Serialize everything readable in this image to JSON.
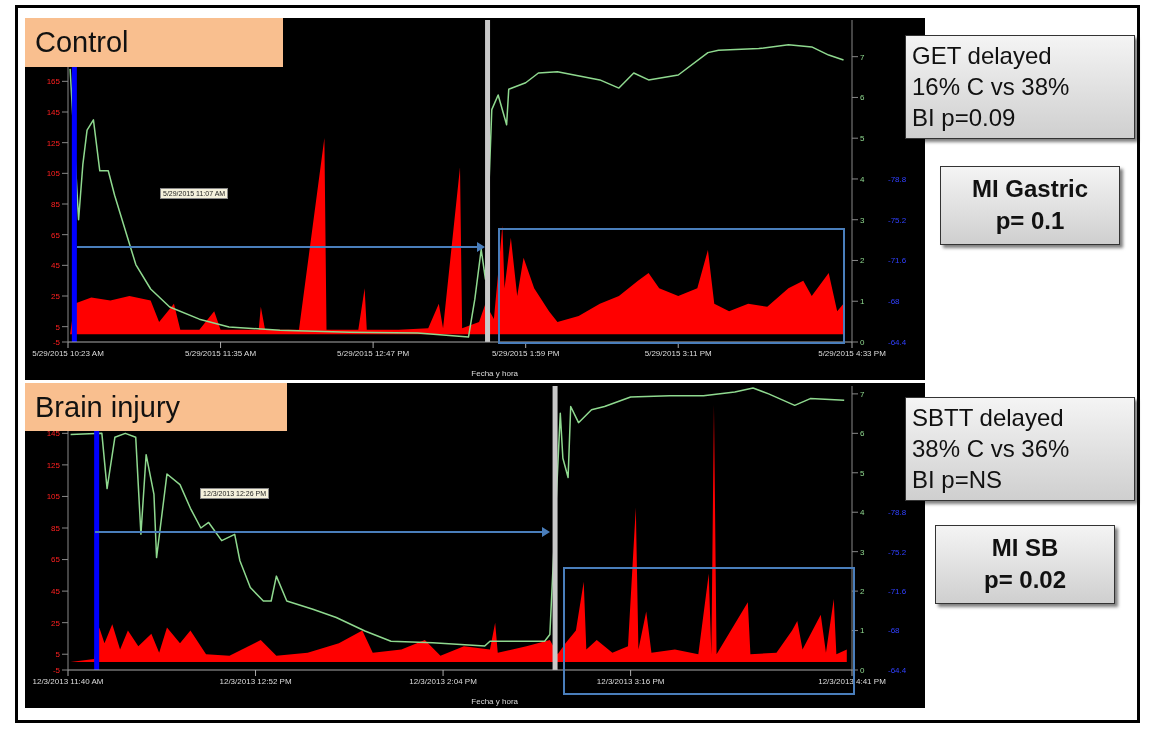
{
  "chart_data": [
    {
      "type": "line",
      "title": "Control",
      "xlabel": "Fecha y hora",
      "xlim": [
        "2015-05-29T10:23",
        "2015-05-29T16:33"
      ],
      "xticks": [
        {
          "value": "2015-05-29T10:23",
          "label": "5/29/2015 10:23 AM"
        },
        {
          "value": "2015-05-29T11:35",
          "label": "5/29/2015 11:35 AM"
        },
        {
          "value": "2015-05-29T12:47",
          "label": "5/29/2015 12:47 PM"
        },
        {
          "value": "2015-05-29T13:59",
          "label": "5/29/2015 1:59 PM"
        },
        {
          "value": "2015-05-29T15:11",
          "label": "5/29/2015 3:11 PM"
        },
        {
          "value": "2015-05-29T16:33",
          "label": "5/29/2015 4:33 PM"
        }
      ],
      "ylim": [
        -5,
        205
      ],
      "yticks": [
        -5,
        5,
        25,
        45,
        65,
        85,
        105,
        125,
        145,
        165
      ],
      "y2lim": [
        0,
        7.9
      ],
      "y2ticks": [
        0,
        1,
        2,
        3,
        4,
        5,
        6,
        7
      ],
      "y3lim": [
        -64.4,
        -92.84
      ],
      "y3ticks": [
        -64.4,
        -68,
        -71.6,
        -75.2,
        -78.8
      ],
      "series": [
        {
          "type": "area",
          "color": "#ff0000",
          "x": [
            "2015-05-29T10:24",
            "2015-05-29T10:26",
            "2015-05-29T10:34",
            "2015-05-29T10:43",
            "2015-05-29T10:52",
            "2015-05-29T11:02",
            "2015-05-29T11:06",
            "2015-05-29T11:13",
            "2015-05-29T11:16",
            "2015-05-29T11:19",
            "2015-05-29T11:25",
            "2015-05-29T11:32",
            "2015-05-29T11:35",
            "2015-05-29T11:53",
            "2015-05-29T11:54",
            "2015-05-29T11:56",
            "2015-05-29T12:12",
            "2015-05-29T12:24",
            "2015-05-29T12:25",
            "2015-05-29T12:40",
            "2015-05-29T12:43",
            "2015-05-29T12:44",
            "2015-05-29T12:59",
            "2015-05-29T13:13",
            "2015-05-29T13:18",
            "2015-05-29T13:20",
            "2015-05-29T13:28",
            "2015-05-29T13:29",
            "2015-05-29T13:37",
            "2015-05-29T13:40",
            "2015-05-29T13:44",
            "2015-05-29T13:46",
            "2015-05-29T13:48",
            "2015-05-29T13:49",
            "2015-05-29T13:52",
            "2015-05-29T13:55",
            "2015-05-29T13:58",
            "2015-05-29T14:03",
            "2015-05-29T14:10",
            "2015-05-29T14:14",
            "2015-05-29T14:24",
            "2015-05-29T14:34",
            "2015-05-29T14:43",
            "2015-05-29T14:52",
            "2015-05-29T14:57",
            "2015-05-29T15:02",
            "2015-05-29T15:11",
            "2015-05-29T15:20",
            "2015-05-29T15:25",
            "2015-05-29T15:28",
            "2015-05-29T15:35",
            "2015-05-29T15:44",
            "2015-05-29T15:53",
            "2015-05-29T16:03",
            "2015-05-29T16:10",
            "2015-05-29T16:14",
            "2015-05-29T16:22",
            "2015-05-29T16:26",
            "2015-05-29T16:29"
          ],
          "values": [
            0,
            20,
            24,
            22,
            25,
            22,
            8,
            20,
            3,
            3,
            3,
            15,
            3,
            3,
            18,
            3,
            3,
            128,
            3,
            3,
            30,
            3,
            3,
            4,
            20,
            4,
            109,
            4,
            8,
            20,
            10,
            40,
            71,
            30,
            63,
            25,
            50,
            30,
            15,
            8,
            12,
            20,
            25,
            35,
            40,
            30,
            25,
            30,
            55,
            20,
            15,
            20,
            18,
            30,
            35,
            25,
            40,
            15,
            20
          ]
        },
        {
          "type": "line",
          "axis": "y2",
          "color": "#8fd98f",
          "x": [
            "2015-05-29T10:24",
            "2015-05-29T10:28",
            "2015-05-29T10:30",
            "2015-05-29T10:32",
            "2015-05-29T10:35",
            "2015-05-29T10:38",
            "2015-05-29T10:42",
            "2015-05-29T10:45",
            "2015-05-29T10:50",
            "2015-05-29T10:55",
            "2015-05-29T11:02",
            "2015-05-29T11:11",
            "2015-05-29T11:25",
            "2015-05-29T11:39",
            "2015-05-29T12:03",
            "2015-05-29T12:36",
            "2015-05-29T13:08",
            "2015-05-29T13:32",
            "2015-05-29T13:35",
            "2015-05-29T13:38",
            "2015-05-29T13:40",
            "2015-05-29T13:43",
            "2015-05-29T13:46",
            "2015-05-29T13:50",
            "2015-05-29T13:51",
            "2015-05-29T13:59",
            "2015-05-29T14:05",
            "2015-05-29T14:14",
            "2015-05-29T14:34",
            "2015-05-29T14:43",
            "2015-05-29T14:50",
            "2015-05-29T14:57",
            "2015-05-29T15:11",
            "2015-05-29T15:25",
            "2015-05-29T15:30",
            "2015-05-29T15:49",
            "2015-05-29T16:03",
            "2015-05-29T16:14",
            "2015-05-29T16:22",
            "2015-05-29T16:29"
          ],
          "values": [
            6.7,
            3.0,
            4.35,
            5.2,
            5.45,
            4.2,
            4.2,
            3.6,
            2.75,
            1.9,
            1.3,
            0.86,
            0.56,
            0.37,
            0.29,
            0.24,
            0.22,
            0.12,
            1.05,
            2.27,
            1.54,
            5.7,
            6.06,
            5.33,
            6.2,
            6.36,
            6.6,
            6.63,
            6.43,
            6.23,
            6.6,
            6.43,
            6.55,
            7.1,
            7.16,
            7.2,
            7.29,
            7.24,
            7.04,
            6.92
          ]
        }
      ],
      "ref_lines": [
        {
          "axis": "x",
          "value": "2015-05-29T10:26",
          "color": "#0000ff"
        },
        {
          "axis": "x",
          "value": "2015-05-29T13:41",
          "color": "#c8c8c8"
        }
      ],
      "annotations": [
        "5/29/2015 11:07 AM",
        "GET delayed\n16% C vs 38%\nBI p=0.09",
        "MI Gastric\np= 0.1"
      ]
    },
    {
      "type": "line",
      "title": "Brain injury",
      "xlabel": "Fecha y hora",
      "xlim": [
        "2013-12-03T11:40",
        "2013-12-03T16:41"
      ],
      "xticks": [
        {
          "value": "2013-12-03T11:40",
          "label": "12/3/2013 11:40 AM"
        },
        {
          "value": "2013-12-03T12:52",
          "label": "12/3/2013 12:52 PM"
        },
        {
          "value": "2013-12-03T14:04",
          "label": "12/3/2013 2:04 PM"
        },
        {
          "value": "2013-12-03T15:16",
          "label": "12/3/2013 3:16 PM"
        },
        {
          "value": "2013-12-03T16:41",
          "label": "12/3/2013 4:41 PM"
        }
      ],
      "ylim": [
        -5,
        175
      ],
      "yticks": [
        -5,
        5,
        25,
        45,
        65,
        85,
        105,
        125,
        145
      ],
      "y2lim": [
        0,
        7.2
      ],
      "y2ticks": [
        0,
        1,
        2,
        3,
        4,
        5,
        6,
        7
      ],
      "y3lim": [
        -64.4,
        -90.32
      ],
      "y3ticks": [
        -64.4,
        -68,
        -71.6,
        -75.2,
        -78.8
      ],
      "series": [
        {
          "type": "area",
          "color": "#ff0000",
          "x": [
            "2013-12-03T11:41",
            "2013-12-03T11:50",
            "2013-12-03T11:52",
            "2013-12-03T11:54",
            "2013-12-03T11:57",
            "2013-12-03T12:00",
            "2013-12-03T12:03",
            "2013-12-03T12:07",
            "2013-12-03T12:12",
            "2013-12-03T12:15",
            "2013-12-03T12:18",
            "2013-12-03T12:23",
            "2013-12-03T12:27",
            "2013-12-03T12:33",
            "2013-12-03T12:42",
            "2013-12-03T12:54",
            "2013-12-03T13:00",
            "2013-12-03T13:12",
            "2013-12-03T13:24",
            "2013-12-03T13:33",
            "2013-12-03T13:37",
            "2013-12-03T13:48",
            "2013-12-03T13:57",
            "2013-12-03T14:03",
            "2013-12-03T14:12",
            "2013-12-03T14:22",
            "2013-12-03T14:24",
            "2013-12-03T14:25",
            "2013-12-03T14:36",
            "2013-12-03T14:45",
            "2013-12-03T14:48",
            "2013-12-03T14:51",
            "2013-12-03T14:55",
            "2013-12-03T14:58",
            "2013-12-03T14:59",
            "2013-12-03T15:03",
            "2013-12-03T15:09",
            "2013-12-03T15:15",
            "2013-12-03T15:18",
            "2013-12-03T15:19",
            "2013-12-03T15:22",
            "2013-12-03T15:24",
            "2013-12-03T15:33",
            "2013-12-03T15:42",
            "2013-12-03T15:46",
            "2013-12-03T15:47",
            "2013-12-03T15:48",
            "2013-12-03T15:49",
            "2013-12-03T16:01",
            "2013-12-03T16:02",
            "2013-12-03T16:12",
            "2013-12-03T16:18",
            "2013-12-03T16:20",
            "2013-12-03T16:22",
            "2013-12-03T16:29",
            "2013-12-03T16:31",
            "2013-12-03T16:34",
            "2013-12-03T16:35",
            "2013-12-03T16:39"
          ],
          "values": [
            0,
            2,
            22,
            12,
            24,
            8,
            20,
            10,
            18,
            6,
            22,
            12,
            20,
            5,
            4,
            14,
            4,
            6,
            12,
            20,
            6,
            8,
            14,
            4,
            10,
            8,
            25,
            6,
            10,
            14,
            5,
            12,
            20,
            51,
            8,
            14,
            6,
            10,
            98,
            8,
            32,
            6,
            8,
            5,
            56,
            5,
            163,
            5,
            38,
            5,
            6,
            20,
            26,
            8,
            30,
            6,
            40,
            5,
            8
          ]
        },
        {
          "type": "line",
          "axis": "y2",
          "color": "#8fd98f",
          "x": [
            "2013-12-03T11:41",
            "2013-12-03T11:53",
            "2013-12-03T11:55",
            "2013-12-03T11:58",
            "2013-12-03T12:02",
            "2013-12-03T12:06",
            "2013-12-03T12:08",
            "2013-12-03T12:10",
            "2013-12-03T12:13",
            "2013-12-03T12:14",
            "2013-12-03T12:18",
            "2013-12-03T12:23",
            "2013-12-03T12:27",
            "2013-12-03T12:31",
            "2013-12-03T12:34",
            "2013-12-03T12:39",
            "2013-12-03T12:44",
            "2013-12-03T12:46",
            "2013-12-03T12:50",
            "2013-12-03T12:55",
            "2013-12-03T12:58",
            "2013-12-03T13:00",
            "2013-12-03T13:04",
            "2013-12-03T13:14",
            "2013-12-03T13:23",
            "2013-12-03T13:34",
            "2013-12-03T13:44",
            "2013-12-03T14:00",
            "2013-12-03T14:20",
            "2013-12-03T14:22",
            "2013-12-03T14:43",
            "2013-12-03T14:45",
            "2013-12-03T14:49",
            "2013-12-03T14:50",
            "2013-12-03T14:52",
            "2013-12-03T14:53",
            "2013-12-03T14:56",
            "2013-12-03T15:01",
            "2013-12-03T15:06",
            "2013-12-03T15:16",
            "2013-12-03T15:31",
            "2013-12-03T15:44",
            "2013-12-03T15:56",
            "2013-12-03T16:03",
            "2013-12-03T16:09",
            "2013-12-03T16:19",
            "2013-12-03T16:25",
            "2013-12-03T16:38"
          ],
          "values": [
            5.97,
            6.0,
            4.6,
            5.9,
            6.0,
            5.9,
            3.44,
            5.46,
            4.45,
            2.85,
            4.97,
            4.7,
            4.1,
            3.6,
            3.74,
            3.28,
            3.44,
            2.77,
            2.09,
            1.75,
            1.75,
            2.38,
            1.75,
            1.54,
            1.33,
            0.99,
            0.73,
            0.69,
            0.61,
            0.73,
            0.73,
            0.9,
            6.51,
            5.37,
            4.88,
            6.68,
            6.27,
            6.6,
            6.68,
            6.92,
            6.95,
            6.95,
            7.05,
            7.15,
            7.0,
            6.71,
            6.88,
            6.84
          ]
        }
      ],
      "ref_lines": [
        {
          "axis": "x",
          "value": "2013-12-03T11:51",
          "color": "#0000ff"
        },
        {
          "axis": "x",
          "value": "2013-12-03T14:47",
          "color": "#c8c8c8"
        }
      ],
      "annotations": [
        "12/3/2013 12:26 PM",
        "SBTT delayed\n38% C vs 36%\nBI p=NS",
        "MI SB\np= 0.02"
      ]
    }
  ]
}
